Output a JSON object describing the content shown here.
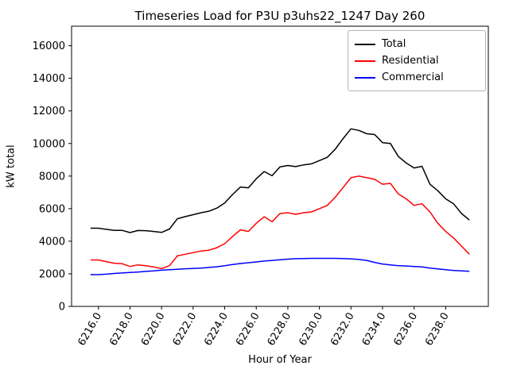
{
  "figure": {
    "title": "Timeseries Load for P3U p3uhs22_1247  Day 260",
    "xlabel": "Hour of Year",
    "ylabel": "kW total"
  },
  "chart_data": {
    "type": "line",
    "title": "Timeseries Load for P3U p3uhs22_1247  Day 260",
    "xlabel": "Hour of Year",
    "ylabel": "kW total",
    "grid": false,
    "legend_position": "upper right",
    "xlim": [
      6214.3,
      6240.7
    ],
    "ylim": [
      0,
      17200
    ],
    "x_ticks": [
      6216,
      6218,
      6220,
      6222,
      6224,
      6226,
      6228,
      6230,
      6232,
      6234,
      6236,
      6238
    ],
    "x_tick_labels": [
      "6216.0",
      "6218.0",
      "6220.0",
      "6222.0",
      "6224.0",
      "6226.0",
      "6228.0",
      "6230.0",
      "6232.0",
      "6234.0",
      "6236.0",
      "6238.0"
    ],
    "y_ticks": [
      0,
      2000,
      4000,
      6000,
      8000,
      10000,
      12000,
      14000,
      16000
    ],
    "x": [
      6215.5,
      6216,
      6216.5,
      6217,
      6217.5,
      6218,
      6218.5,
      6219,
      6219.5,
      6220,
      6220.5,
      6221,
      6221.5,
      6222,
      6222.5,
      6223,
      6223.5,
      6224,
      6224.5,
      6225,
      6225.5,
      6226,
      6226.5,
      6227,
      6227.5,
      6228,
      6228.5,
      6229,
      6229.5,
      6230,
      6230.5,
      6231,
      6231.5,
      6232,
      6232.5,
      6233,
      6233.5,
      6234,
      6234.5,
      6235,
      6235.5,
      6236,
      6236.5,
      6237,
      6237.5,
      6238,
      6238.5,
      6239,
      6239.5
    ],
    "series": [
      {
        "name": "Total",
        "color": "#000000",
        "values": [
          4800,
          4800,
          4730,
          4670,
          4670,
          4530,
          4660,
          4650,
          4600,
          4540,
          4750,
          5380,
          5510,
          5630,
          5750,
          5840,
          6030,
          6350,
          6870,
          7330,
          7280,
          7830,
          8280,
          8020,
          8560,
          8650,
          8580,
          8690,
          8750,
          8950,
          9150,
          9650,
          10300,
          10900,
          10800,
          10600,
          10550,
          10050,
          10000,
          9200,
          8800,
          8500,
          8600,
          7500,
          7100,
          6600,
          6300,
          5700,
          5300
        ]
      },
      {
        "name": "Residential",
        "color": "#ff0000",
        "values": [
          2850,
          2850,
          2750,
          2650,
          2620,
          2450,
          2550,
          2500,
          2420,
          2320,
          2500,
          3100,
          3200,
          3300,
          3400,
          3450,
          3600,
          3850,
          4300,
          4700,
          4600,
          5100,
          5500,
          5200,
          5700,
          5750,
          5650,
          5750,
          5800,
          6000,
          6200,
          6700,
          7300,
          7900,
          8000,
          7900,
          7800,
          7500,
          7550,
          6900,
          6600,
          6200,
          6300,
          5800,
          5100,
          4600,
          4200,
          3700,
          3200
        ]
      },
      {
        "name": "Commercial",
        "color": "#0000ff",
        "values": [
          1950,
          1950,
          1980,
          2020,
          2050,
          2080,
          2110,
          2150,
          2180,
          2220,
          2250,
          2280,
          2310,
          2330,
          2350,
          2390,
          2430,
          2500,
          2570,
          2630,
          2680,
          2730,
          2780,
          2820,
          2860,
          2900,
          2930,
          2940,
          2950,
          2950,
          2950,
          2950,
          2940,
          2920,
          2880,
          2820,
          2700,
          2600,
          2550,
          2500,
          2480,
          2450,
          2420,
          2350,
          2300,
          2250,
          2200,
          2180,
          2160
        ]
      }
    ]
  }
}
